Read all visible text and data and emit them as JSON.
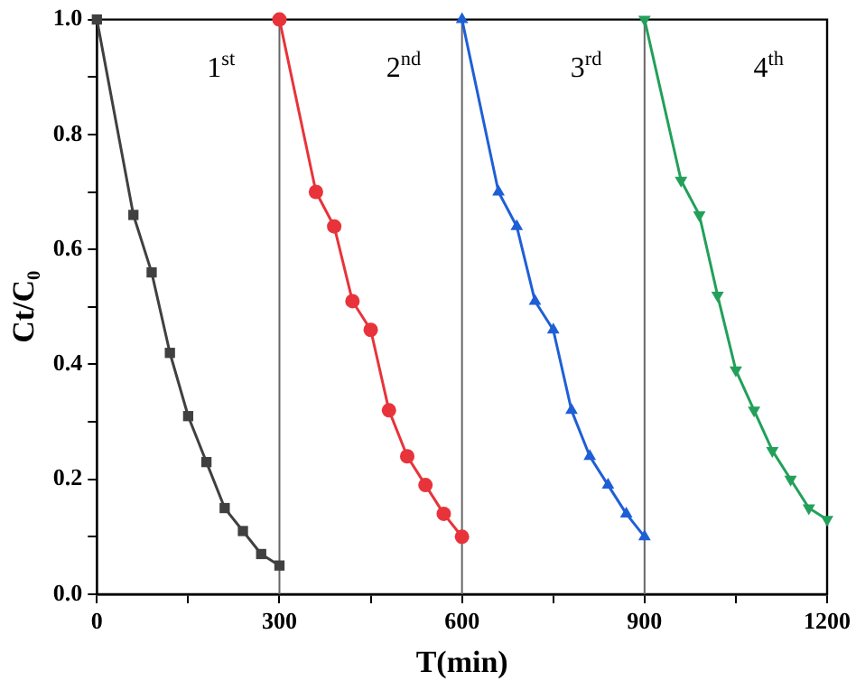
{
  "chart_data": {
    "type": "line",
    "xlabel": "T(min)",
    "ylabel": "Ct/C₀",
    "xlim": [
      0,
      1200
    ],
    "xticks": [
      0,
      {
        "value": 150,
        "label": null
      },
      300,
      {
        "value": 450,
        "label": null
      },
      600,
      {
        "value": 750,
        "label": null
      },
      900,
      {
        "value": 1050,
        "label": null
      },
      1200
    ],
    "ylim": [
      0,
      1
    ],
    "yticks": [
      {
        "value": 0,
        "label": "0.0"
      },
      {
        "value": 0.1,
        "label": null
      },
      {
        "value": 0.2,
        "label": "0.2"
      },
      {
        "value": 0.3,
        "label": null
      },
      {
        "value": 0.4,
        "label": "0.4"
      },
      {
        "value": 0.5,
        "label": null
      },
      {
        "value": 0.6,
        "label": "0.6"
      },
      {
        "value": 0.7,
        "label": null
      },
      {
        "value": 0.8,
        "label": "0.8"
      },
      {
        "value": 0.9,
        "label": null
      },
      {
        "value": 1,
        "label": "1.0"
      }
    ],
    "grid": false,
    "legend": false,
    "line_style": "solid",
    "series": [
      {
        "color": "#404040",
        "marker": "square",
        "x": [
          0,
          60,
          90,
          120,
          150,
          180,
          210,
          240,
          270,
          300
        ],
        "values": [
          1.0,
          0.66,
          0.56,
          0.42,
          0.31,
          0.23,
          0.15,
          0.11,
          0.07,
          0.05
        ]
      },
      {
        "color": "#e8333a",
        "marker": "circle",
        "x": [
          300,
          360,
          390,
          420,
          450,
          480,
          510,
          540,
          570,
          600
        ],
        "values": [
          1.0,
          0.7,
          0.64,
          0.51,
          0.46,
          0.32,
          0.24,
          0.19,
          0.14,
          0.1
        ]
      },
      {
        "color": "#1f5fd6",
        "marker": "triangle",
        "x": [
          600,
          660,
          690,
          720,
          750,
          780,
          810,
          840,
          870,
          900
        ],
        "values": [
          1.0,
          0.7,
          0.64,
          0.51,
          0.46,
          0.32,
          0.24,
          0.19,
          0.14,
          0.1
        ]
      },
      {
        "color": "#22a05a",
        "marker": "triangle-down",
        "x": [
          900,
          960,
          990,
          1020,
          1050,
          1080,
          1110,
          1140,
          1170,
          1200
        ],
        "values": [
          1.0,
          0.72,
          0.66,
          0.52,
          0.39,
          0.32,
          0.25,
          0.2,
          0.15,
          0.13
        ]
      }
    ],
    "ref_lines": [
      {
        "axis": "x",
        "value": 300,
        "color": "#666666"
      },
      {
        "axis": "x",
        "value": 600,
        "color": "#666666"
      },
      {
        "axis": "x",
        "value": 900,
        "color": "#666666"
      }
    ],
    "annotations": [
      "1$^{st}$",
      "2$^{nd}$",
      "3$^{rd}$",
      "4$^{th}$"
    ]
  }
}
